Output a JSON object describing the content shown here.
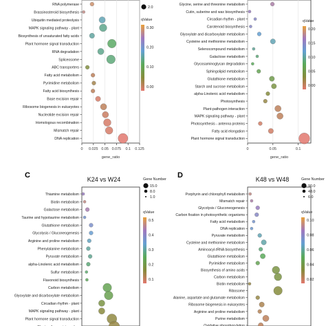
{
  "chart_data": [
    {
      "type": "scatter",
      "panel_label": "",
      "title": "",
      "xlabel": "gene_ratio",
      "ylabel": "",
      "xlim": [
        0,
        0.125
      ],
      "xticks": [
        0,
        0.025,
        0.05,
        0.075,
        0.1,
        0.125
      ],
      "xtick_labels": [
        "0",
        "0.025",
        "0.05",
        "0.075",
        "0.1",
        "0.125"
      ],
      "legend": {
        "size_title": "",
        "size_labels": [
          "2.0"
        ],
        "color_title": "qValue",
        "color_ticks": [
          "0.30",
          "0.20",
          "0.10",
          "0.00"
        ]
      },
      "categories": [
        "RNA polymerase",
        "Brassinosteroid biosynthesis",
        "Ubiquitin mediated proteolysis",
        "MAPK signaling pathway - plant",
        "Biosynthesis of unsaturated fatty acids",
        "Plant hormone signal transduction",
        "RNA degradation",
        "Spliceosome",
        "ABC transporters",
        "Fatty acid metabolism",
        "Pyrimidine metabolism",
        "Fatty acid biosynthesis",
        "Base excision repair",
        "Ribosome biogenesis in eukaryotes",
        "Nucleotide excision repair",
        "Homologous recombination",
        "Mismatch repair",
        "DNA replication"
      ],
      "points": [
        {
          "x": 0.022,
          "q": 0.28,
          "size": 2
        },
        {
          "x": 0.004,
          "q": 0.27,
          "size": 1
        },
        {
          "x": 0.044,
          "q": 0.18,
          "size": 4
        },
        {
          "x": 0.046,
          "q": 0.16,
          "size": 5
        },
        {
          "x": 0.022,
          "q": 0.17,
          "size": 3
        },
        {
          "x": 0.065,
          "q": 0.14,
          "size": 6
        },
        {
          "x": 0.041,
          "q": 0.16,
          "size": 4
        },
        {
          "x": 0.063,
          "q": 0.15,
          "size": 6
        },
        {
          "x": 0.012,
          "q": 0.08,
          "size": 2
        },
        {
          "x": 0.024,
          "q": 0.03,
          "size": 2
        },
        {
          "x": 0.026,
          "q": 0.05,
          "size": 2
        },
        {
          "x": 0.024,
          "q": 0.03,
          "size": 2
        },
        {
          "x": 0.035,
          "q": 0.01,
          "size": 3
        },
        {
          "x": 0.047,
          "q": 0.03,
          "size": 4
        },
        {
          "x": 0.051,
          "q": 0.02,
          "size": 4
        },
        {
          "x": 0.055,
          "q": 0.01,
          "size": 5
        },
        {
          "x": 0.059,
          "q": 0.01,
          "size": 5
        },
        {
          "x": 0.089,
          "q": 0.0,
          "size": 7
        }
      ]
    },
    {
      "type": "scatter",
      "panel_label": "",
      "title": "",
      "xlabel": "gene_ratio",
      "ylabel": "",
      "xlim": [
        0,
        0.125
      ],
      "xticks": [
        0,
        0.05,
        0.1
      ],
      "xtick_labels": [
        "0",
        "0.05",
        "0.1"
      ],
      "legend": {
        "size_title": "",
        "size_labels": [],
        "color_title": "qValue",
        "color_ticks": [
          "0.20",
          "0.15",
          "0.10",
          "0.05",
          "0.00"
        ]
      },
      "categories": [
        "Glycine, serine and threonine metabolism",
        "Cutin, suberine and wax biosynthesis",
        "Circadian rhythm - plant",
        "Carotenoid biosynthesis",
        "Glyoxylate and dicarboxylate metabolism",
        "Cysteine and methionine metabolism",
        "Selenocompound metabolism",
        "Galactose metabolism",
        "Glycosaminoglycan degradation",
        "Sphingolipid metabolism",
        "Glutathione metabolism",
        "Starch and sucrose metabolism",
        "alpha-Linolenic acid metabolism",
        "Photosynthesis",
        "Plant-pathogen interaction",
        "MAPK signaling pathway - plant",
        "Photosynthesis - antenna proteins",
        "Fatty acid elongation",
        "Plant hormone signal transduction"
      ],
      "points": [
        {
          "x": 0.049,
          "q": 0.17,
          "size": 2
        },
        {
          "x": 0.004,
          "q": 0.16,
          "size": 1
        },
        {
          "x": 0.015,
          "q": 0.15,
          "size": 1
        },
        {
          "x": 0.006,
          "q": 0.15,
          "size": 1
        },
        {
          "x": 0.023,
          "q": 0.13,
          "size": 2
        },
        {
          "x": 0.05,
          "q": 0.12,
          "size": 3
        },
        {
          "x": 0.012,
          "q": 0.11,
          "size": 1
        },
        {
          "x": 0.019,
          "q": 0.1,
          "size": 1
        },
        {
          "x": 0.01,
          "q": 0.09,
          "size": 1
        },
        {
          "x": 0.022,
          "q": 0.08,
          "size": 2
        },
        {
          "x": 0.048,
          "q": 0.07,
          "size": 3
        },
        {
          "x": 0.052,
          "q": 0.06,
          "size": 3
        },
        {
          "x": 0.04,
          "q": 0.05,
          "size": 2
        },
        {
          "x": 0.035,
          "q": 0.04,
          "size": 2
        },
        {
          "x": 0.06,
          "q": 0.02,
          "size": 4
        },
        {
          "x": 0.064,
          "q": 0.02,
          "size": 4
        },
        {
          "x": 0.025,
          "q": 0.01,
          "size": 2
        },
        {
          "x": 0.046,
          "q": 0.01,
          "size": 3
        },
        {
          "x": 0.112,
          "q": 0.0,
          "size": 8
        }
      ]
    },
    {
      "type": "scatter",
      "panel_label": "C",
      "title": "K24 vs W24",
      "xlabel": "",
      "ylabel": "",
      "xlim": [
        0,
        0.125
      ],
      "xticks": [],
      "xtick_labels": [],
      "legend": {
        "size_title": "Gene Number",
        "size_labels": [
          "15.0",
          "8.0",
          "1.0"
        ],
        "color_title": "qValue",
        "color_ticks": [
          "0.5",
          "0.4",
          "0.3",
          "0.2",
          "0.1"
        ]
      },
      "categories": [
        "Thiamine metabolism",
        "Biotin metabolism",
        "Galactose metabolism",
        "Taurine and hypotaurine metabolism",
        "Glutathione metabolism",
        "Glycolysis / Gluconeogenesis",
        "Arginine and proline metabolism",
        "Phenylalanine metabolism",
        "Pyruvate metabolism",
        "alpha-Linolenic acid metabolism",
        "Sulfur metabolism",
        "Flavonoid biosynthesis",
        "Carbon metabolism",
        "Glyoxylate and dicarboxylate metabolism",
        "Circadian rhythm - plant",
        "MAPK signaling pathway - plant",
        "Plant hormone signal transduction",
        "Plant-pathogen interaction"
      ],
      "points": [
        {
          "x": 0.003,
          "q": 0.4,
          "size": 1
        },
        {
          "x": 0.006,
          "q": 0.45,
          "size": 1
        },
        {
          "x": 0.012,
          "q": 0.42,
          "size": 2
        },
        {
          "x": 0.006,
          "q": 0.35,
          "size": 1
        },
        {
          "x": 0.02,
          "q": 0.36,
          "size": 2
        },
        {
          "x": 0.02,
          "q": 0.33,
          "size": 2
        },
        {
          "x": 0.016,
          "q": 0.31,
          "size": 2
        },
        {
          "x": 0.014,
          "q": 0.28,
          "size": 2
        },
        {
          "x": 0.018,
          "q": 0.27,
          "size": 2
        },
        {
          "x": 0.014,
          "q": 0.25,
          "size": 2
        },
        {
          "x": 0.01,
          "q": 0.24,
          "size": 1
        },
        {
          "x": 0.011,
          "q": 0.22,
          "size": 1
        },
        {
          "x": 0.055,
          "q": 0.2,
          "size": 6
        },
        {
          "x": 0.058,
          "q": 0.19,
          "size": 6
        },
        {
          "x": 0.043,
          "q": 0.15,
          "size": 4
        },
        {
          "x": 0.043,
          "q": 0.12,
          "size": 4
        },
        {
          "x": 0.065,
          "q": 0.11,
          "size": 7
        },
        {
          "x": 0.07,
          "q": 0.1,
          "size": 8
        }
      ]
    },
    {
      "type": "scatter",
      "panel_label": "D",
      "title": "K48 vs W48",
      "xlabel": "",
      "ylabel": "",
      "xlim": [
        0,
        0.125
      ],
      "xticks": [],
      "xtick_labels": [],
      "legend": {
        "size_title": "Gene Number",
        "size_labels": [
          "90.0",
          "48.0",
          "6.0"
        ],
        "color_title": "qValue",
        "color_ticks": [
          "0.10",
          "0.08",
          "0.06",
          "0.04",
          "0.02"
        ]
      },
      "categories": [
        "Porphyrin and chlorophyll metabolism",
        "Mismatch repair",
        "Glycolysis / Gluconeogenesis",
        "Carbon fixation in photosynthetic organisms",
        "Fatty acid metabolism",
        "DNA replication",
        "Pyruvate metabolism",
        "Cysteine and methionine metabolism",
        "Aminoacyl-tRNA biosynthesis",
        "Glutathione metabolism",
        "Pyrimidine metabolism",
        "Biosynthesis of amino acids",
        "Carbon metabolism",
        "Biotin metabolism",
        "Ribosome",
        "Alanine, aspartate and glutamate metabolism",
        "Ribosome biogenesis in eukaryotes",
        "Arginine and proline metabolism",
        "Purine metabolism",
        "Oxidative phosphorylation"
      ],
      "points": [
        {
          "x": 0.005,
          "q": 0.09,
          "size": 1
        },
        {
          "x": 0.008,
          "q": 0.085,
          "size": 1
        },
        {
          "x": 0.02,
          "q": 0.08,
          "size": 2
        },
        {
          "x": 0.018,
          "q": 0.075,
          "size": 2
        },
        {
          "x": 0.012,
          "q": 0.07,
          "size": 1
        },
        {
          "x": 0.008,
          "q": 0.068,
          "size": 1
        },
        {
          "x": 0.024,
          "q": 0.06,
          "size": 2
        },
        {
          "x": 0.032,
          "q": 0.058,
          "size": 3
        },
        {
          "x": 0.026,
          "q": 0.05,
          "size": 2
        },
        {
          "x": 0.03,
          "q": 0.045,
          "size": 3
        },
        {
          "x": 0.02,
          "q": 0.04,
          "size": 2
        },
        {
          "x": 0.056,
          "q": 0.03,
          "size": 5
        },
        {
          "x": 0.06,
          "q": 0.03,
          "size": 5
        },
        {
          "x": 0.004,
          "q": 0.02,
          "size": 1
        },
        {
          "x": 0.06,
          "q": 0.025,
          "size": 6
        },
        {
          "x": 0.02,
          "q": 0.02,
          "size": 2
        },
        {
          "x": 0.028,
          "q": 0.015,
          "size": 3
        },
        {
          "x": 0.024,
          "q": 0.012,
          "size": 2
        },
        {
          "x": 0.036,
          "q": 0.01,
          "size": 4
        },
        {
          "x": 0.026,
          "q": 0.01,
          "size": 3
        }
      ]
    }
  ]
}
